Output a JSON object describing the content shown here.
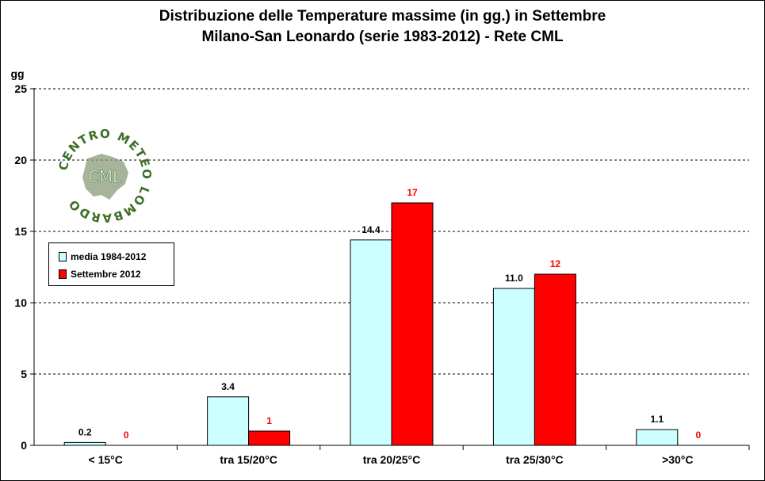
{
  "chart_data": {
    "type": "bar",
    "title": "Distribuzione delle Temperature massime (in gg.) in Settembre",
    "subtitle": "Milano-San Leonardo (serie 1983-2012) - Rete CML",
    "ylabel": "gg",
    "ylim": [
      0,
      25
    ],
    "yticks": [
      0,
      5,
      10,
      15,
      20,
      25
    ],
    "grid": true,
    "legend_position": "left",
    "categories": [
      "< 15°C",
      "tra 15/20°C",
      "tra 20/25°C",
      "tra 25/30°C",
      ">30°C"
    ],
    "series": [
      {
        "name": "media 1984-2012",
        "color": "#ccffff",
        "label_color": "#000000",
        "values": [
          0.2,
          3.4,
          14.4,
          11.0,
          1.1
        ],
        "labels": [
          "0.2",
          "3.4",
          "14.4",
          "11.0",
          "1.1"
        ]
      },
      {
        "name": "Settembre 2012",
        "color": "#ff0000",
        "label_color": "#ff0000",
        "values": [
          0,
          1,
          17,
          12,
          0
        ],
        "labels": [
          "0",
          "1",
          "17",
          "12",
          "0"
        ]
      }
    ]
  },
  "logo": {
    "ring_text": "CENTRO METEO LOMBARDO",
    "center_text": "CML"
  }
}
